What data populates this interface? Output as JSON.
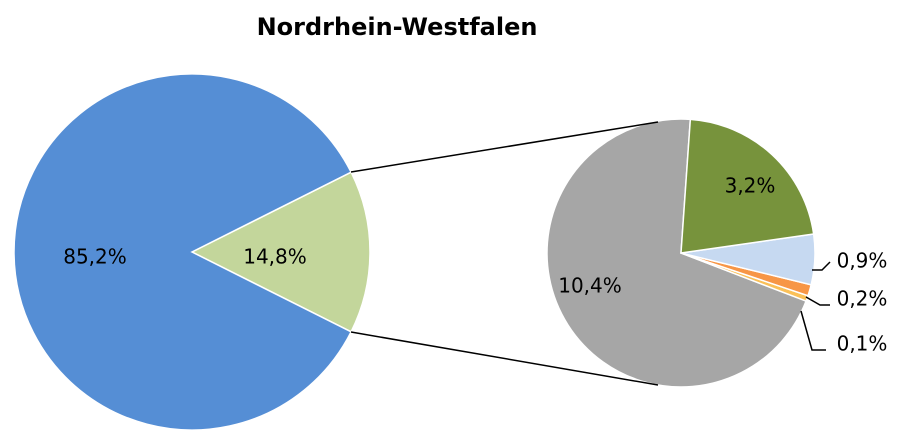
{
  "chart_data": [
    {
      "type": "pie",
      "title": "Nordrhein-Westfalen",
      "values": [
        85.2,
        14.8
      ],
      "value_labels": [
        "85,2%",
        "14,8%"
      ],
      "colors": [
        "#558ed5",
        "#c3d69b"
      ]
    },
    {
      "type": "pie",
      "values": [
        3.2,
        0.9,
        0.2,
        0.1,
        10.4
      ],
      "value_labels": [
        "3,2%",
        "0,9%",
        "0,2%",
        "0,1%",
        "10,4%"
      ],
      "colors": [
        "#77933c",
        "#c6d9f1",
        "#f79646",
        "#fac058",
        "#a6a6a6"
      ]
    }
  ]
}
